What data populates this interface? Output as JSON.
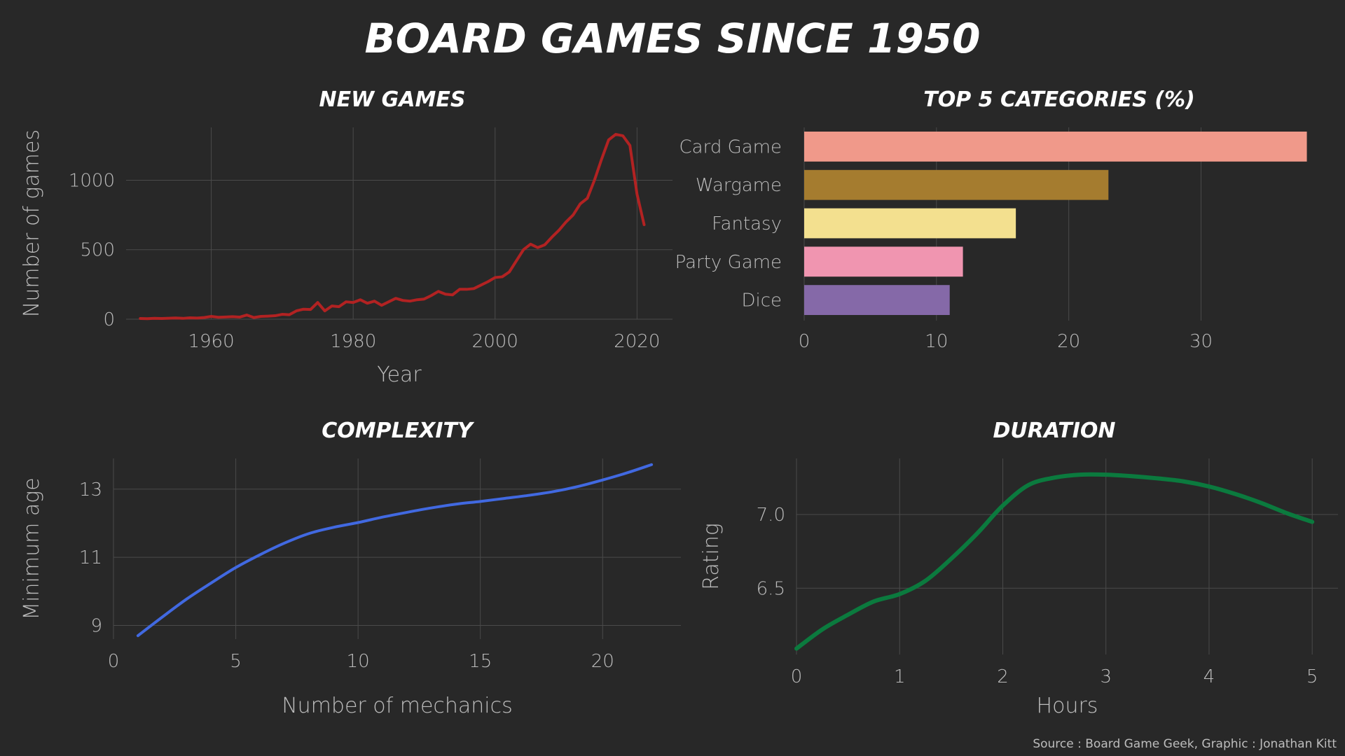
{
  "title": "BOARD GAMES SINCE 1950",
  "source": "Source : Board Game Geek, Graphic : Jonathan Kitt",
  "colors": {
    "background": "#282828",
    "new_games_line": "#B22222",
    "complexity_line": "#4169E1",
    "duration_line": "#0B7A3E",
    "bars": [
      "#F0998A",
      "#A57C2F",
      "#F3E08F",
      "#F095B0",
      "#8569A8"
    ]
  },
  "chart_data": [
    {
      "type": "line",
      "title": "NEW GAMES",
      "xlabel": "Year",
      "ylabel": "Number of games",
      "xlim": [
        1948,
        2025
      ],
      "ylim": [
        0,
        1380
      ],
      "xticks": [
        1960,
        1980,
        2000,
        2020
      ],
      "yticks": [
        0,
        500,
        1000
      ],
      "grid": true,
      "series": [
        {
          "x": [
            1950,
            1951,
            1952,
            1953,
            1954,
            1955,
            1956,
            1957,
            1958,
            1959,
            1960,
            1961,
            1962,
            1963,
            1964,
            1965,
            1966,
            1967,
            1968,
            1969,
            1970,
            1971,
            1972,
            1973,
            1974,
            1975,
            1976,
            1977,
            1978,
            1979,
            1980,
            1981,
            1982,
            1983,
            1984,
            1985,
            1986,
            1987,
            1988,
            1989,
            1990,
            1991,
            1992,
            1993,
            1994,
            1995,
            1996,
            1997,
            1998,
            1999,
            2000,
            2001,
            2002,
            2003,
            2004,
            2005,
            2006,
            2007,
            2008,
            2009,
            2010,
            2011,
            2012,
            2013,
            2014,
            2015,
            2016,
            2017,
            2018,
            2019,
            2020,
            2021
          ],
          "y": [
            5,
            4,
            6,
            5,
            7,
            9,
            6,
            10,
            8,
            12,
            20,
            14,
            16,
            18,
            15,
            30,
            12,
            20,
            22,
            25,
            35,
            32,
            60,
            72,
            70,
            120,
            60,
            95,
            90,
            125,
            120,
            140,
            115,
            130,
            100,
            125,
            150,
            135,
            130,
            140,
            145,
            170,
            200,
            180,
            175,
            215,
            215,
            220,
            245,
            270,
            300,
            305,
            340,
            420,
            500,
            540,
            515,
            535,
            590,
            640,
            700,
            750,
            830,
            870,
            1000,
            1150,
            1290,
            1330,
            1320,
            1250,
            900,
            680
          ]
        }
      ]
    },
    {
      "type": "bar",
      "title": "TOP 5 CATEGORIES (%)",
      "categories": [
        "Card Game",
        "Wargame",
        "Fantasy",
        "Party Game",
        "Dice"
      ],
      "values": [
        38,
        23,
        16,
        12,
        11
      ],
      "xlim": [
        0,
        38.5
      ],
      "xticks": [
        0,
        10,
        20,
        30
      ],
      "grid": true
    },
    {
      "type": "line",
      "title": "COMPLEXITY",
      "xlabel": "Number of mechanics",
      "ylabel": "Minimum age",
      "xlim": [
        0,
        23.2
      ],
      "ylim": [
        8.6,
        13.9
      ],
      "xticks": [
        0,
        5,
        10,
        15,
        20
      ],
      "yticks": [
        9,
        11,
        13
      ],
      "grid": true,
      "series": [
        {
          "x": [
            1,
            2,
            3,
            4,
            5,
            6,
            7,
            8,
            9,
            10,
            11,
            12,
            13,
            14,
            15,
            16,
            17,
            18,
            19,
            20,
            21,
            22
          ],
          "y": [
            8.7,
            9.25,
            9.78,
            10.25,
            10.7,
            11.08,
            11.42,
            11.7,
            11.88,
            12.02,
            12.18,
            12.32,
            12.45,
            12.56,
            12.64,
            12.73,
            12.82,
            12.93,
            13.08,
            13.27,
            13.48,
            13.72
          ]
        }
      ]
    },
    {
      "type": "line",
      "title": "DURATION",
      "xlabel": "Hours",
      "ylabel": "Rating",
      "xlim": [
        0,
        5.25
      ],
      "ylim": [
        6.05,
        7.38
      ],
      "xticks": [
        0,
        1,
        2,
        3,
        4,
        5
      ],
      "yticks": [
        6.5,
        7.0
      ],
      "grid": true,
      "series": [
        {
          "x": [
            0,
            0.25,
            0.5,
            0.75,
            1.0,
            1.25,
            1.5,
            1.75,
            2.0,
            2.25,
            2.5,
            2.75,
            3.0,
            3.25,
            3.5,
            3.75,
            4.0,
            4.25,
            4.5,
            4.75,
            5.0
          ],
          "y": [
            6.09,
            6.22,
            6.32,
            6.41,
            6.46,
            6.55,
            6.7,
            6.87,
            7.06,
            7.2,
            7.25,
            7.27,
            7.27,
            7.26,
            7.245,
            7.225,
            7.19,
            7.14,
            7.08,
            7.01,
            6.95
          ]
        }
      ]
    }
  ]
}
